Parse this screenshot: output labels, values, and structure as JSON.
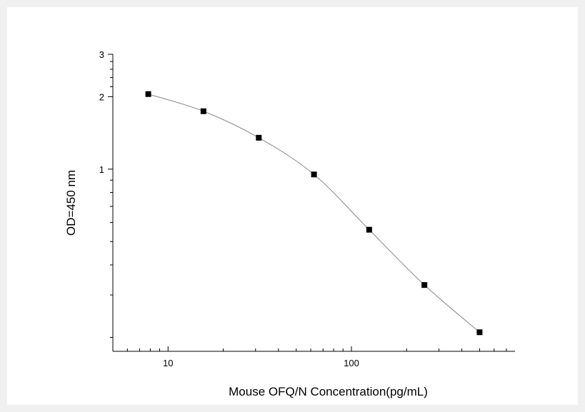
{
  "chart_data": {
    "type": "line",
    "title": "",
    "xlabel": "Mouse OFQ/N  Concentration(pg/mL)",
    "ylabel": "OD=450 nm",
    "x_scale": "log",
    "y_scale": "log",
    "xlim": [
      5,
      780
    ],
    "ylim": [
      0.175,
      3
    ],
    "x_major_ticks": [
      10,
      100
    ],
    "x_tick_labels": [
      "10",
      "100"
    ],
    "y_major_ticks": [
      1,
      2,
      3
    ],
    "y_tick_labels": [
      "1",
      "2",
      "3"
    ],
    "grid": false,
    "legend": "none",
    "series": [
      {
        "x": [
          7.8,
          15.6,
          31.25,
          62.5,
          125,
          250,
          500
        ],
        "y": [
          2.05,
          1.74,
          1.35,
          0.95,
          0.56,
          0.33,
          0.21
        ],
        "marker": "square",
        "color": "#000000",
        "line_color": "#888888"
      }
    ]
  }
}
